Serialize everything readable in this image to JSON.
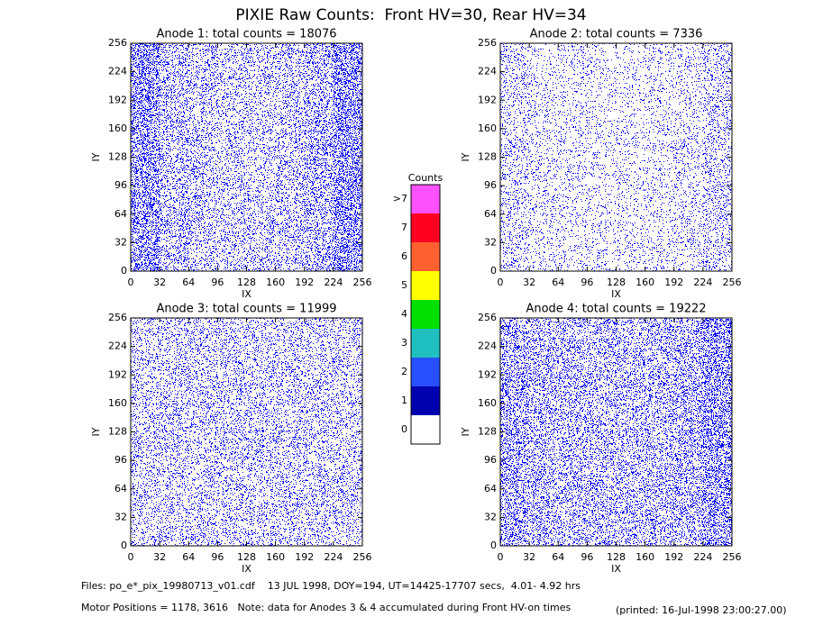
{
  "title": "PIXIE Raw Counts:  Front HV=30, Rear HV=34",
  "chart_data": [
    {
      "type": "pixelmap",
      "title": "Anode 1: total counts = 18076",
      "xlabel": "IX",
      "ylabel": "IY",
      "xlim": [
        0,
        256
      ],
      "ylim": [
        0,
        256
      ],
      "xticks": [
        0,
        32,
        64,
        96,
        128,
        160,
        192,
        224,
        256
      ],
      "yticks": [
        0,
        32,
        64,
        96,
        128,
        160,
        192,
        224,
        256
      ],
      "color": "#0000ff",
      "column_counts": [
        3600,
        2000,
        1700,
        1500,
        1500,
        1700,
        2300,
        3776
      ]
    },
    {
      "type": "pixelmap",
      "title": "Anode 2: total counts = 7336",
      "xlabel": "IX",
      "ylabel": "IY",
      "xlim": [
        0,
        256
      ],
      "ylim": [
        0,
        256
      ],
      "xticks": [
        0,
        32,
        64,
        96,
        128,
        160,
        192,
        224,
        256
      ],
      "yticks": [
        0,
        32,
        64,
        96,
        128,
        160,
        192,
        224,
        256
      ],
      "color": "#0000ff",
      "column_counts": [
        1200,
        800,
        800,
        700,
        700,
        800,
        900,
        1400
      ]
    },
    {
      "type": "pixelmap",
      "title": "Anode 3: total counts = 11999",
      "xlabel": "IX",
      "ylabel": "IY",
      "xlim": [
        0,
        256
      ],
      "ylim": [
        0,
        256
      ],
      "xticks": [
        0,
        32,
        64,
        96,
        128,
        160,
        192,
        224,
        256
      ],
      "yticks": [
        0,
        32,
        64,
        96,
        128,
        160,
        192,
        224,
        256
      ],
      "color": "#0000ff",
      "column_counts": [
        1500,
        1500,
        1500,
        1500,
        1500,
        1500,
        1500,
        1500
      ]
    },
    {
      "type": "pixelmap",
      "title": "Anode 4: total counts = 19222",
      "xlabel": "IX",
      "ylabel": "IY",
      "xlim": [
        0,
        256
      ],
      "ylim": [
        0,
        256
      ],
      "xticks": [
        0,
        32,
        64,
        96,
        128,
        160,
        192,
        224,
        256
      ],
      "yticks": [
        0,
        32,
        64,
        96,
        128,
        160,
        192,
        224,
        256
      ],
      "color": "#0000ff",
      "column_counts": [
        2800,
        2200,
        2100,
        2000,
        2000,
        2100,
        2400,
        3600
      ]
    }
  ],
  "colorbar": {
    "title": "Counts",
    "levels": [
      "0",
      "1",
      "2",
      "3",
      "4",
      "5",
      "6",
      "7",
      ">7"
    ],
    "colors": [
      "#ffffff",
      "#0000b0",
      "#2850ff",
      "#20c0c0",
      "#00e000",
      "#ffff00",
      "#ff6030",
      "#ff0020",
      "#ff50ff"
    ]
  },
  "footer": {
    "files": "Files: po_e*_pix_19980713_v01.cdf    13 JUL 1998, DOY=194, UT=14425-17707 secs,  4.01- 4.92 hrs",
    "motor": "Motor Positions = 1178, 3616   Note: data for Anodes 3 & 4 accumulated during Front HV-on times",
    "printed": "(printed: 16-Jul-1998 23:00:27.00)"
  }
}
